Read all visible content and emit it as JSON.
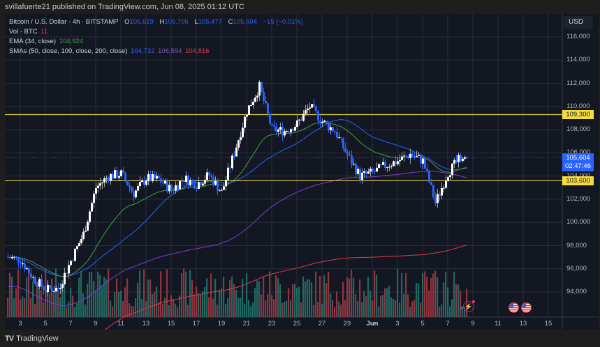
{
  "publisher": "svillafuerte21 published on TradingView.com, Jun 08, 2025 01:12 UTC",
  "legend": {
    "symbol": "Bitcoin / U.S. Dollar · 4h · BITSTAMP",
    "open_label": "O",
    "open": "105,619",
    "high_label": "H",
    "high": "105,705",
    "low_label": "L",
    "low": "105,477",
    "close_label": "C",
    "close": "105,604",
    "change": "−15 (−0.01%)",
    "vol_label": "Vol · BTC",
    "vol": "11",
    "ema_label": "EMA (34, close)",
    "ema": "104,924",
    "sma_label": "SMAs (50, close, 100, close, 200, close)",
    "sma50": "104,732",
    "sma100": "106,594",
    "sma200": "104,816"
  },
  "currency_button": "USD",
  "footer": {
    "logo": "TV",
    "brand": "TradingView"
  },
  "colors": {
    "background": "#131722",
    "grid": "#2a2e39",
    "up_candle": "#ffffff",
    "down_candle": "#2962ff",
    "vol_up": "#22786e",
    "vol_down": "#a83a44",
    "ema34": "#43a047",
    "sma50": "#2962ff",
    "sma100": "#7e3fc8",
    "sma200": "#e03a4a",
    "hline": "#e5d447",
    "last_price": "#2962ff"
  },
  "badges": {
    "resistance": "109,300",
    "support": "103,600",
    "last_price": "105,604",
    "countdown": "02:47:46"
  },
  "chart_data": {
    "type": "candlestick",
    "title": "Bitcoin / U.S. Dollar · 4h · BITSTAMP",
    "xlabel": "",
    "ylabel": "USD",
    "ylim": [
      92000,
      117500
    ],
    "y_ticks": [
      "116,000",
      "114,000",
      "112,000",
      "110,000",
      "108,000",
      "106,000",
      "104,000",
      "102,000",
      "100,000",
      "98,000",
      "96,000",
      "94,000"
    ],
    "x_ticks": [
      "3",
      "5",
      "7",
      "9",
      "11",
      "13",
      "15",
      "17",
      "19",
      "21",
      "23",
      "25",
      "27",
      "29",
      "Jun",
      "3",
      "5",
      "7",
      "9",
      "11",
      "13",
      "15"
    ],
    "horizontal_lines": [
      109300,
      103600
    ],
    "last_price": 105604,
    "approx_close_path": [
      {
        "date": "May 2",
        "price": 97000
      },
      {
        "date": "May 3",
        "price": 96800
      },
      {
        "date": "May 4",
        "price": 95200
      },
      {
        "date": "May 5",
        "price": 94200
      },
      {
        "date": "May 6",
        "price": 94300
      },
      {
        "date": "May 7",
        "price": 96700
      },
      {
        "date": "May 8",
        "price": 99000
      },
      {
        "date": "May 9",
        "price": 103000
      },
      {
        "date": "May 10",
        "price": 104000
      },
      {
        "date": "May 11",
        "price": 104200
      },
      {
        "date": "May 12",
        "price": 102500
      },
      {
        "date": "May 13",
        "price": 103800
      },
      {
        "date": "May 14",
        "price": 103700
      },
      {
        "date": "May 15",
        "price": 102800
      },
      {
        "date": "May 16",
        "price": 103800
      },
      {
        "date": "May 17",
        "price": 103300
      },
      {
        "date": "May 18",
        "price": 104100
      },
      {
        "date": "May 19",
        "price": 102600
      },
      {
        "date": "May 20",
        "price": 106000
      },
      {
        "date": "May 21",
        "price": 109600
      },
      {
        "date": "May 22",
        "price": 111700
      },
      {
        "date": "May 23",
        "price": 108000
      },
      {
        "date": "May 24",
        "price": 107900
      },
      {
        "date": "May 25",
        "price": 108500
      },
      {
        "date": "May 26",
        "price": 110000
      },
      {
        "date": "May 27",
        "price": 108700
      },
      {
        "date": "May 28",
        "price": 107900
      },
      {
        "date": "May 29",
        "price": 105800
      },
      {
        "date": "May 30",
        "price": 104000
      },
      {
        "date": "May 31",
        "price": 104300
      },
      {
        "date": "Jun 1",
        "price": 104900
      },
      {
        "date": "Jun 2",
        "price": 105300
      },
      {
        "date": "Jun 3",
        "price": 105900
      },
      {
        "date": "Jun 4",
        "price": 105300
      },
      {
        "date": "Jun 5",
        "price": 101700
      },
      {
        "date": "Jun 6",
        "price": 104300
      },
      {
        "date": "Jun 7",
        "price": 105600
      }
    ],
    "series": [
      {
        "name": "EMA 34",
        "last": 104924
      },
      {
        "name": "SMA 50",
        "last": 104732
      },
      {
        "name": "SMA 100",
        "last": 106594
      },
      {
        "name": "SMA 200",
        "last": 104816
      }
    ]
  }
}
